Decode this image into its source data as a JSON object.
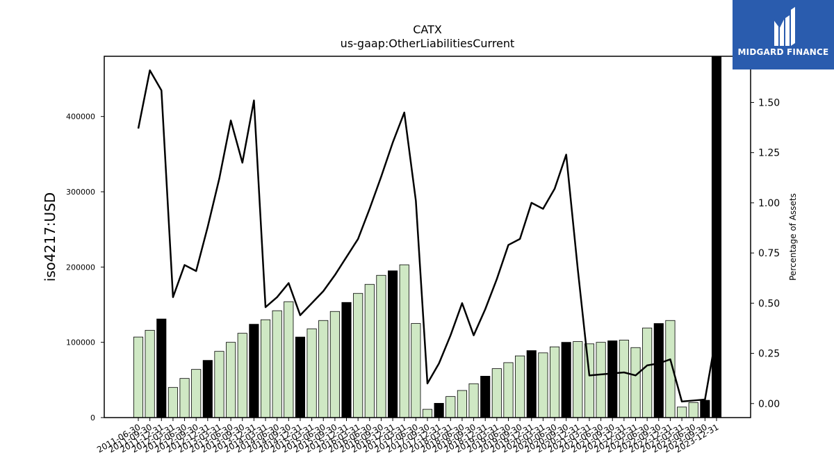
{
  "chart_data": {
    "type": "bar",
    "title": "CATX",
    "subtitle": "us-gaap:OtherLiabilitiesCurrent",
    "ylabel": "iso4217:USD",
    "ylabel_right": "Percentage of Assets",
    "ylim": [
      0,
      480000
    ],
    "ylim_right": [
      -0.07,
      1.73
    ],
    "yticks": [
      0,
      100000,
      200000,
      300000,
      400000
    ],
    "yticks_right": [
      "0.00",
      "0.25",
      "0.50",
      "0.75",
      "1.00",
      "1.25",
      "1.50"
    ],
    "grid": false,
    "categories": [
      "2011-06-30",
      "2011-09-30",
      "2011-12-31",
      "2012-03-31",
      "2012-06-30",
      "2012-09-30",
      "2012-12-31",
      "2013-03-31",
      "2013-06-30",
      "2013-09-30",
      "2013-12-31",
      "2014-03-31",
      "2014-06-30",
      "2014-09-30",
      "2014-12-31",
      "2015-03-31",
      "2015-06-30",
      "2015-09-30",
      "2015-12-31",
      "2016-03-31",
      "2016-06-30",
      "2016-09-30",
      "2016-12-31",
      "2017-03-31",
      "2017-06-30",
      "2017-09-30",
      "2017-12-31",
      "2018-03-31",
      "2018-06-30",
      "2018-09-30",
      "2018-12-31",
      "2019-03-31",
      "2019-06-30",
      "2019-09-30",
      "2019-12-31",
      "2020-03-31",
      "2020-06-30",
      "2020-09-30",
      "2020-12-31",
      "2021-03-31",
      "2021-06-30",
      "2021-09-30",
      "2021-12-31",
      "2022-03-31",
      "2022-06-30",
      "2022-09-30",
      "2022-12-31",
      "2023-03-31",
      "2023-06-30",
      "2023-09-30",
      "2023-12-31"
    ],
    "x_tick_labels": [
      "2011-06-30",
      "2011-09-30",
      "2011-12-31",
      "2012-03-31",
      "2012-06-30",
      "2012-09-30",
      "2012-12-31",
      "2013-03-31",
      "2013-06-30",
      "2013-09-30",
      "2013-12-31",
      "2014-03-31",
      "2014-06-30",
      "2014-09-30",
      "2014-12-31",
      "2015-03-31",
      "2015-06-30",
      "2015-09-30",
      "2015-12-31",
      "2016-03-31",
      "2016-06-30",
      "2016-09-30",
      "2016-12-31",
      "2017-03-31",
      "2017-06-30",
      "2017-09-30",
      "2017-12-31",
      "2018-03-31",
      "2018-06-30",
      "2018-09-30",
      "2018-12-31",
      "2019-03-31",
      "2019-06-30",
      "2019-09-30",
      "2019-12-31",
      "2020-03-31",
      "2020-06-30",
      "2020-09-30",
      "2020-12-31",
      "2021-03-31",
      "2021-06-30",
      "2021-09-30",
      "2021-12-31",
      "2022-03-31",
      "2022-06-30",
      "2022-09-30",
      "2022-12-31",
      "2023-03-31",
      "2023-06-30",
      "2023-09-30",
      "2023-12-31"
    ],
    "values": [
      107000,
      116000,
      131000,
      40000,
      52000,
      64000,
      76000,
      88000,
      100000,
      112000,
      124000,
      130000,
      142000,
      154000,
      107000,
      118000,
      129000,
      141000,
      153000,
      165000,
      177000,
      189000,
      195000,
      203000,
      125000,
      11000,
      19000,
      28000,
      36000,
      45000,
      55000,
      65000,
      73000,
      82000,
      89000,
      86000,
      94000,
      100000,
      101000,
      98000,
      100000,
      102000,
      103000,
      93000,
      119000,
      125000,
      129000,
      14000,
      20000,
      23000,
      480000
    ],
    "bar_colors": [
      "light",
      "light",
      "dark",
      "light",
      "light",
      "light",
      "dark",
      "light",
      "light",
      "light",
      "dark",
      "light",
      "light",
      "light",
      "dark",
      "light",
      "light",
      "light",
      "dark",
      "light",
      "light",
      "light",
      "dark",
      "light",
      "light",
      "light",
      "dark",
      "light",
      "light",
      "light",
      "dark",
      "light",
      "light",
      "light",
      "dark",
      "light",
      "light",
      "dark",
      "light",
      "light",
      "light",
      "dark",
      "light",
      "light",
      "light",
      "dark",
      "light",
      "light",
      "light",
      "dark",
      "dark"
    ],
    "line_series": {
      "name": "Percentage of Assets",
      "values": [
        1.37,
        1.66,
        1.56,
        0.53,
        0.69,
        0.66,
        0.88,
        1.12,
        1.41,
        1.2,
        1.51,
        0.48,
        0.53,
        0.6,
        0.44,
        0.5,
        0.56,
        0.64,
        0.73,
        0.82,
        0.97,
        1.13,
        1.3,
        1.45,
        1.01,
        0.1,
        0.2,
        0.34,
        0.5,
        0.34,
        0.47,
        0.62,
        0.79,
        0.82,
        1.0,
        0.97,
        1.07,
        1.24,
        0.67,
        0.14,
        0.145,
        0.15,
        0.155,
        0.14,
        0.19,
        0.2,
        0.22,
        0.01,
        0.015,
        0.02,
        0.35
      ]
    },
    "colors": {
      "light": "#cfe8c4",
      "dark": "#000000",
      "line": "#000000",
      "edge": "#000000"
    }
  },
  "logo": {
    "text": "MIDGARD FINANCE",
    "background": "#2a5cae"
  }
}
